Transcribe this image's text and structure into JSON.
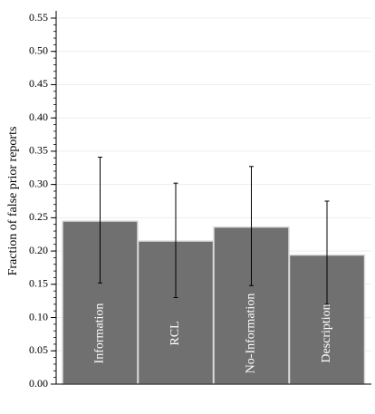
{
  "chart_data": {
    "type": "bar",
    "categories": [
      "Information",
      "RCL",
      "No-Information",
      "Description"
    ],
    "values": [
      0.245,
      0.215,
      0.236,
      0.194
    ],
    "error_bars": {
      "lower": [
        0.152,
        0.13,
        0.148,
        0.12
      ],
      "upper": [
        0.341,
        0.302,
        0.327,
        0.275
      ]
    },
    "ylabel": "Fraction of false prior reports",
    "xlabel": "",
    "ylim": [
      0,
      0.55
    ],
    "y_ticks": [
      "0.00",
      "0.05",
      "0.10",
      "0.15",
      "0.20",
      "0.25",
      "0.30",
      "0.35",
      "0.40",
      "0.45",
      "0.50",
      "0.55"
    ],
    "grid": true,
    "legend": "none",
    "colors": {
      "bar": "#707070",
      "bar_edge": "#dcdcdc",
      "bar_label": "#ffffff",
      "error_bar": "#000000",
      "grid": "#eeeeee",
      "axis": "#000000"
    }
  }
}
